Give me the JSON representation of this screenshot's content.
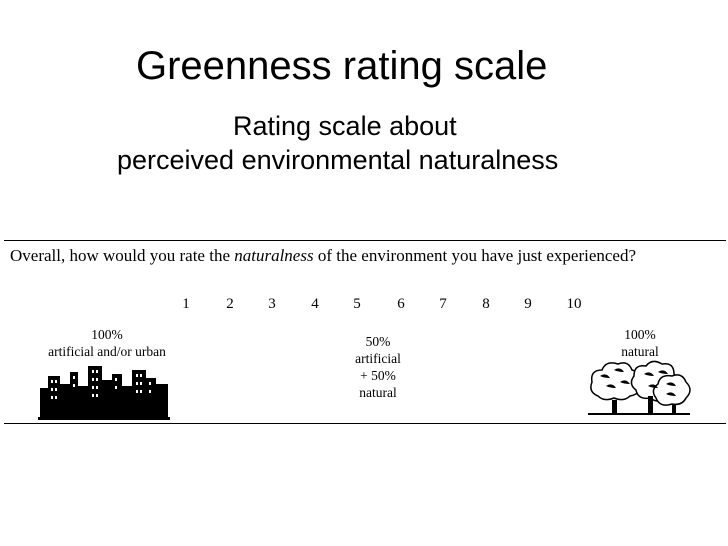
{
  "slide": {
    "title": "Greenness rating scale",
    "subtitle_line1": "Rating scale about",
    "subtitle_line2": "perceived environmental naturalness"
  },
  "question": {
    "prefix": "Overall, how would you rate the ",
    "emphasis": "naturalness",
    "suffix": " of the environment you have just experienced?"
  },
  "scale": {
    "numbers": [
      "1",
      "2",
      "3",
      "4",
      "5",
      "6",
      "7",
      "8",
      "9",
      "10"
    ]
  },
  "anchors": {
    "left": {
      "line1": "100%",
      "line2": "artificial and/or urban"
    },
    "middle": {
      "line1": "50%",
      "line2": "artificial",
      "line3": "+ 50%",
      "line4": "natural"
    },
    "right": {
      "line1": "100%",
      "line2": "natural"
    }
  },
  "icons": {
    "left": "city-skyline-icon",
    "right": "trees-icon"
  }
}
